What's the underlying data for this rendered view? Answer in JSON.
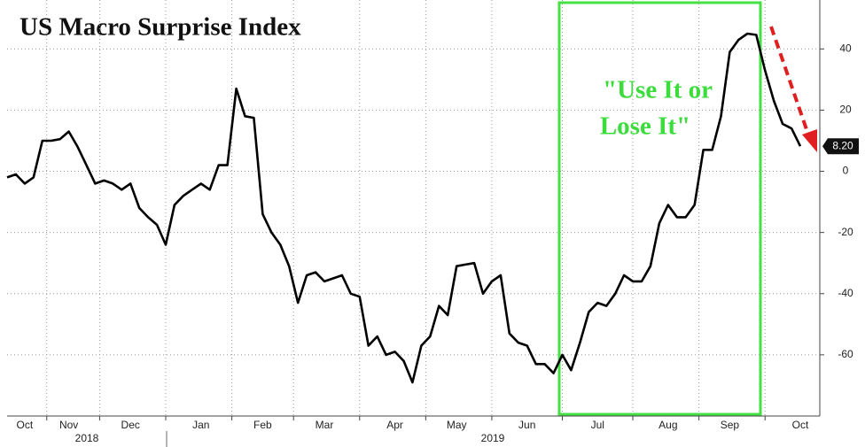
{
  "chart_data": {
    "type": "line",
    "title": "US Macro Surprise Index",
    "categories": [
      null,
      null,
      "Oct",
      null,
      null,
      null,
      null,
      "Nov",
      null,
      null,
      null,
      null,
      null,
      null,
      "Dec",
      null,
      null,
      null,
      null,
      null,
      null,
      null,
      "Jan",
      null,
      null,
      null,
      null,
      null,
      null,
      "Feb",
      null,
      null,
      null,
      null,
      null,
      null,
      "Mar",
      null,
      null,
      null,
      null,
      null,
      null,
      null,
      "Apr",
      null,
      null,
      null,
      null,
      null,
      null,
      "May",
      null,
      null,
      null,
      null,
      null,
      null,
      null,
      "Jun",
      null,
      null,
      null,
      null,
      null,
      null,
      null,
      "Jul",
      null,
      null,
      null,
      null,
      null,
      null,
      null,
      "Aug",
      null,
      null,
      null,
      null,
      null,
      null,
      "Sep",
      null,
      null,
      null,
      null,
      null,
      null,
      null,
      "Oct"
    ],
    "year_labels": [
      "2018",
      "2019"
    ],
    "series": [
      {
        "name": "US Macro Surprise Index",
        "color": "#000000",
        "values": [
          -2,
          -1,
          -4,
          -2,
          10,
          10,
          10.5,
          13,
          8,
          2,
          -4,
          -3,
          -4,
          -6,
          -4,
          -12,
          -15,
          -17.5,
          -24,
          -11,
          -8,
          -6,
          -4,
          -6,
          2,
          2,
          27,
          18,
          17.5,
          -14,
          -20,
          -24,
          -31,
          -43,
          -34,
          -33,
          -36,
          -35,
          -34,
          -40,
          -41,
          -57,
          -54,
          -60,
          -59,
          -62,
          -69,
          -57,
          -54,
          -44,
          -47,
          -31,
          -30.5,
          -30,
          -40,
          -36,
          -34,
          -53,
          -56,
          -57,
          -63,
          -63,
          -66,
          -60,
          -65,
          -56,
          -46,
          -43,
          -44,
          -40,
          -34,
          -36,
          -36,
          -31,
          -17,
          -11,
          -15,
          -15,
          -11,
          7,
          7,
          18,
          39,
          43,
          45,
          44.6,
          33,
          23,
          15.5,
          14,
          8.2
        ]
      }
    ],
    "end_label": "8.20",
    "annotation": [
      "\"Use It or",
      "Lose It\""
    ],
    "ylim": [
      -80,
      56
    ],
    "yticks": [
      -60,
      -40,
      -20,
      0,
      20,
      40
    ],
    "grid": true
  }
}
